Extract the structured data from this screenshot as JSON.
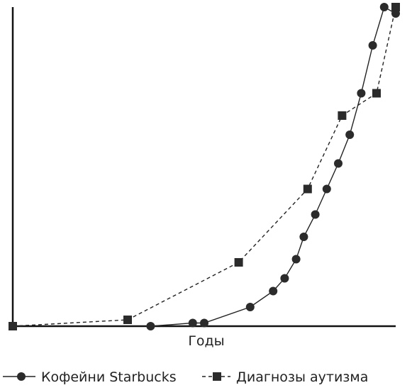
{
  "chart_data": {
    "type": "line",
    "title": "",
    "xlabel": "Годы",
    "ylabel": "",
    "grid": false,
    "legend_placement": "bottom",
    "xlim": [
      0,
      100
    ],
    "ylim": [
      0,
      100
    ],
    "series": [
      {
        "name": "Кофейни Starbucks",
        "marker": "circle",
        "line_style": "solid",
        "color": "#222222",
        "x": [
          36,
          47,
          50,
          62,
          68,
          71,
          74,
          76,
          79,
          82,
          85,
          88,
          91,
          94,
          97,
          100
        ],
        "y": [
          0,
          1,
          1,
          6,
          11,
          15,
          21,
          28,
          35,
          43,
          51,
          60,
          73,
          88,
          100,
          98
        ]
      },
      {
        "name": "Диагнозы аутизма",
        "marker": "square",
        "line_style": "dashed",
        "color": "#222222",
        "x": [
          0,
          30,
          59,
          77,
          86,
          95,
          100
        ],
        "y": [
          0,
          2,
          20,
          43,
          66,
          73,
          100
        ]
      }
    ]
  }
}
